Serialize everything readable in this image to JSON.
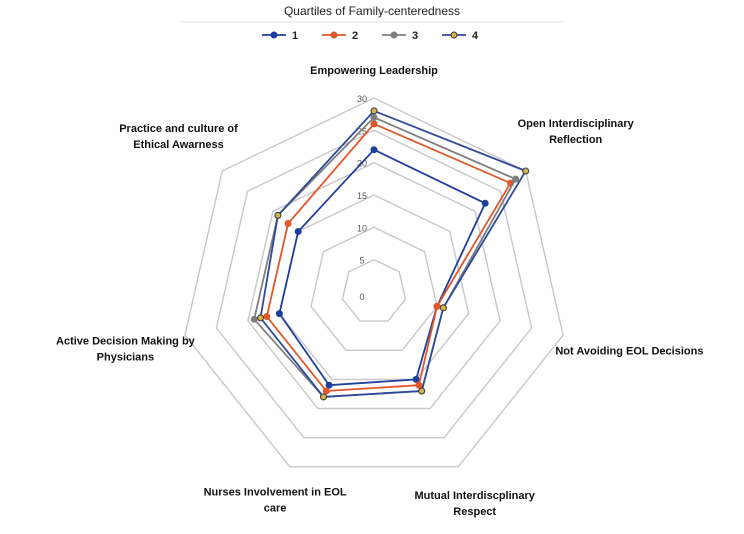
{
  "chart_data": {
    "type": "radar",
    "title": "Quartiles of Family-centeredness",
    "axes": [
      [
        "Empowering Leadership"
      ],
      [
        "Open Interdisciplinary",
        "Reflection"
      ],
      [
        "Not Avoiding EOL Decisions"
      ],
      [
        "Mutual Interdiscplinary",
        "Respect"
      ],
      [
        "Nurses Involvement in EOL",
        "care"
      ],
      [
        "Active Decision Making by",
        "Physicians"
      ],
      [
        "Practice and culture of",
        "Ethical Awarness"
      ]
    ],
    "ticks": [
      "0",
      "5",
      "10",
      "15",
      "20",
      "25",
      "30"
    ],
    "rmax": 30,
    "series": [
      {
        "name": "1",
        "color": "#1f3f9e",
        "values": [
          22,
          22,
          10,
          15,
          16,
          15,
          15
        ]
      },
      {
        "name": "2",
        "color": "#e2572a",
        "values": [
          26,
          27,
          10,
          16,
          17,
          17,
          17
        ]
      },
      {
        "name": "3",
        "color": "#7f7f7f",
        "values": [
          27,
          28,
          11,
          17,
          18,
          19,
          19
        ]
      },
      {
        "name": "4",
        "color": "#2e4a9a",
        "values": [
          28,
          30,
          11,
          17,
          18,
          18,
          19
        ]
      }
    ],
    "grid": true,
    "legend": "top-center"
  }
}
